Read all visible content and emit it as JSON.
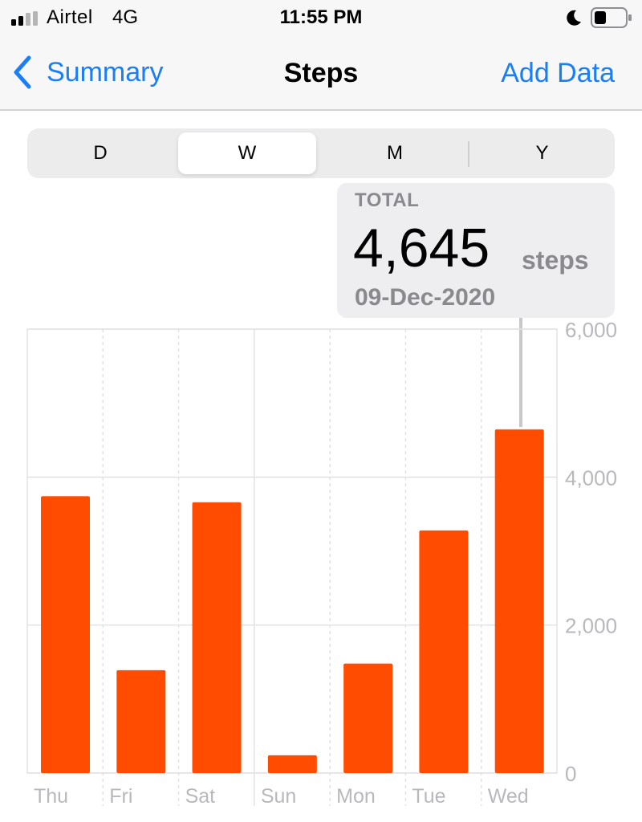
{
  "status_bar": {
    "carrier": "Airtel",
    "network": "4G",
    "time": "11:55 PM",
    "icons": [
      "signal-icon",
      "moon-icon",
      "battery-icon"
    ]
  },
  "nav": {
    "back_label": "Summary",
    "title": "Steps",
    "action_label": "Add Data"
  },
  "segments": {
    "items": [
      "D",
      "W",
      "M",
      "Y"
    ],
    "selected": "W"
  },
  "summary": {
    "label": "TOTAL",
    "value": "4,645",
    "unit": "steps",
    "date": "09-Dec-2020"
  },
  "colors": {
    "accent": "#1a7ef5",
    "bar": "#ff4c00",
    "grid": "#e2e2e4",
    "axis_text": "#b8b8bd"
  },
  "chart_data": {
    "type": "bar",
    "categories": [
      "Thu",
      "Fri",
      "Sat",
      "Sun",
      "Mon",
      "Tue",
      "Wed"
    ],
    "values": [
      3740,
      1390,
      3660,
      240,
      1480,
      3280,
      4645
    ],
    "y_ticks": [
      "6,000",
      "4,000",
      "2,000",
      "0"
    ],
    "y_tick_values": [
      6000,
      4000,
      2000,
      0
    ],
    "ylim": [
      0,
      6000
    ],
    "selected_category": "Wed",
    "grid": true
  }
}
